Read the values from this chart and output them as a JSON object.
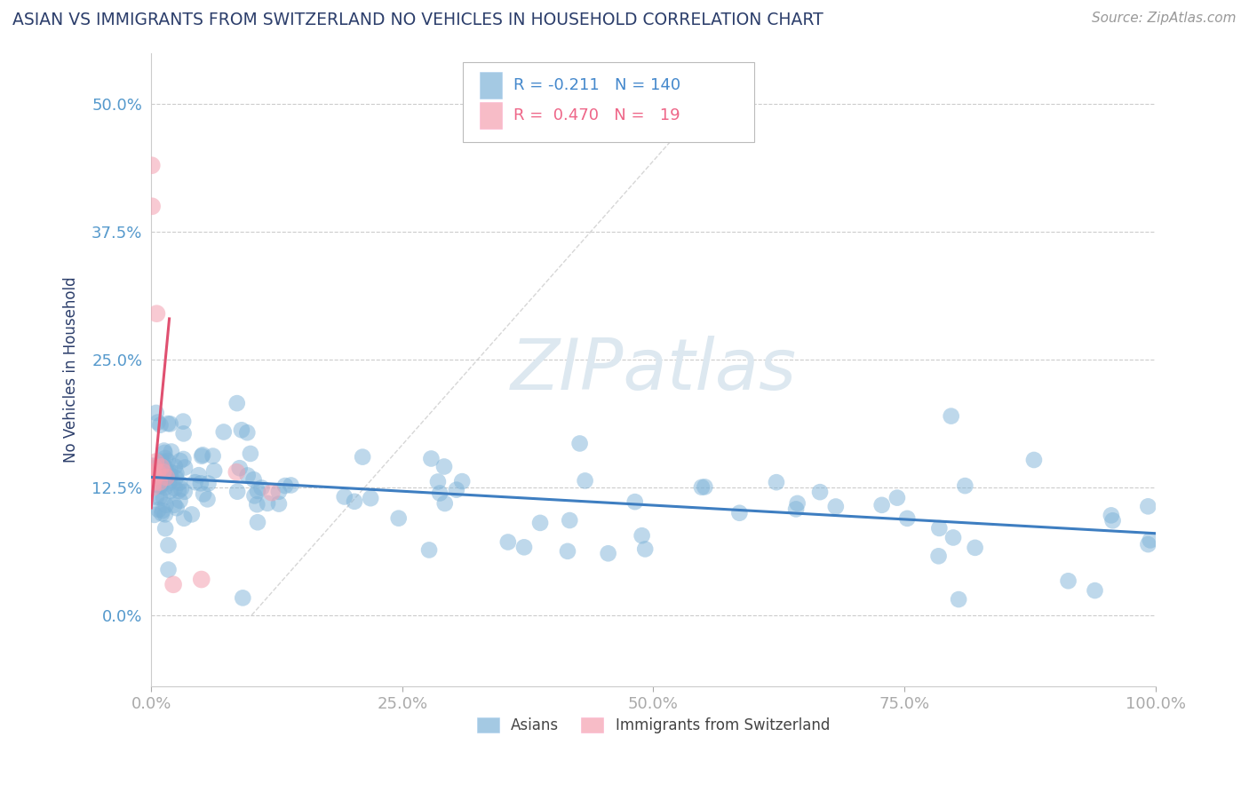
{
  "title": "ASIAN VS IMMIGRANTS FROM SWITZERLAND NO VEHICLES IN HOUSEHOLD CORRELATION CHART",
  "source": "Source: ZipAtlas.com",
  "ylabel": "No Vehicles in Household",
  "xlim": [
    0,
    100
  ],
  "ylim": [
    -7,
    55
  ],
  "yticks": [
    0.0,
    12.5,
    25.0,
    37.5,
    50.0
  ],
  "xticks": [
    0,
    25,
    50,
    75,
    100
  ],
  "xtick_labels": [
    "0.0%",
    "25.0%",
    "50.0%",
    "75.0%",
    "100.0%"
  ],
  "ytick_labels": [
    "0.0%",
    "12.5%",
    "25.0%",
    "37.5%",
    "50.0%"
  ],
  "asian_color": "#7EB3D8",
  "swiss_color": "#F4A0B0",
  "asian_R": -0.211,
  "asian_N": 140,
  "swiss_R": 0.47,
  "swiss_N": 19,
  "background_color": "#FFFFFF",
  "grid_color": "#CCCCCC",
  "title_color": "#2C3E6B",
  "axis_label_color": "#2C3E6B",
  "tick_label_color": "#5599CC",
  "source_color": "#999999",
  "legend_text_color_blue": "#4488CC",
  "legend_text_color_pink": "#EE6688",
  "watermark_color": "#DDE8F0",
  "blue_line_start_y": 13.5,
  "blue_line_end_y": 8.0,
  "pink_line_start_x": 0.0,
  "pink_line_start_y": 10.5,
  "pink_line_end_x": 1.8,
  "pink_line_end_y": 29.0,
  "diag_line_color": "#CCCCCC"
}
